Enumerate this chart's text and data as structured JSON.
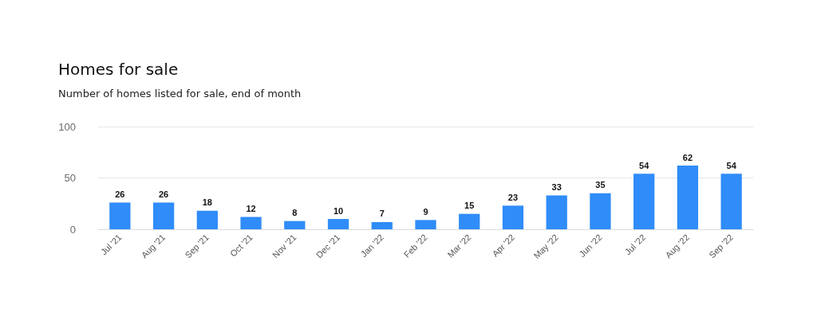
{
  "chart_data": {
    "type": "bar",
    "title": "Homes for sale",
    "subtitle": "Number of homes listed for sale, end of month",
    "categories": [
      "Jul '21",
      "Aug '21",
      "Sep '21",
      "Oct '21",
      "Nov '21",
      "Dec '21",
      "Jan '22",
      "Feb '22",
      "Mar '22",
      "Apr '22",
      "May '22",
      "Jun '22",
      "Jul '22",
      "Aug '22",
      "Sep '22"
    ],
    "values": [
      26,
      26,
      18,
      12,
      8,
      10,
      7,
      9,
      15,
      23,
      33,
      35,
      54,
      62,
      54
    ],
    "color": "#2f8cf8",
    "ylim": [
      0,
      100
    ],
    "yticks": [
      0,
      50,
      100
    ],
    "grid": "y",
    "data_labels": true
  }
}
